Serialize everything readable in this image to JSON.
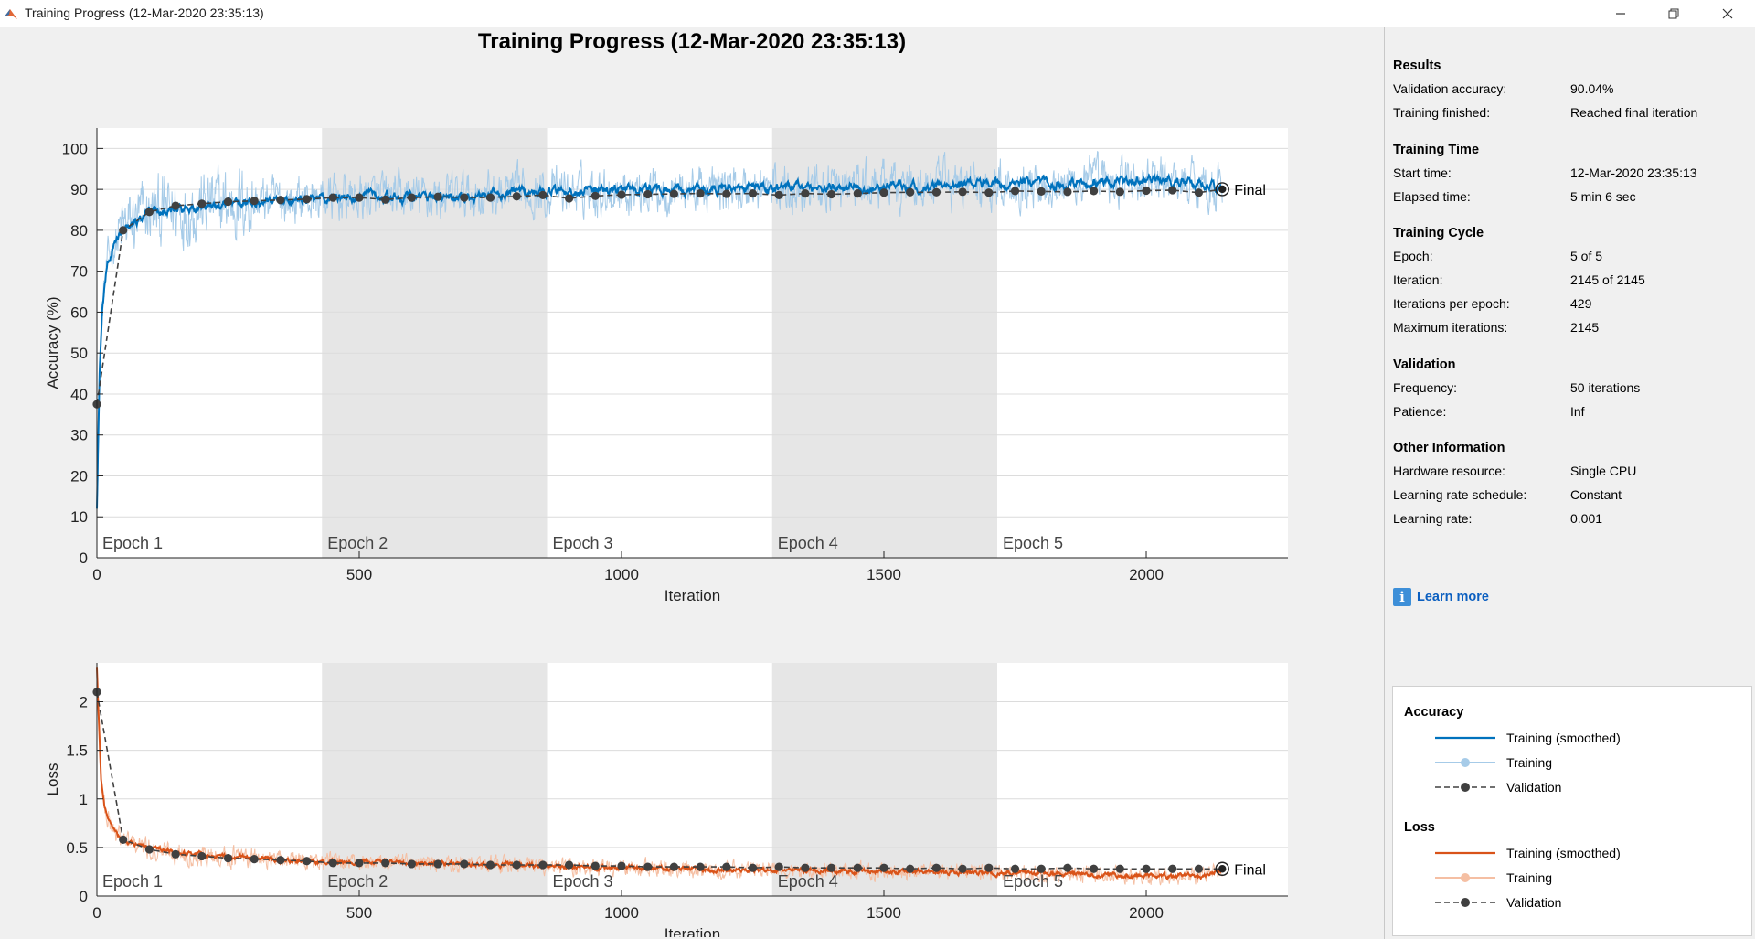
{
  "window": {
    "title": "Training Progress (12-Mar-2020 23:35:13)",
    "controls": {
      "minimize": "minimize-icon",
      "maximize": "restore-icon",
      "close": "close-icon"
    }
  },
  "figure_title": "Training Progress (12-Mar-2020 23:35:13)",
  "results_panel": {
    "sections": [
      {
        "title": "Results",
        "rows": [
          {
            "label": "Validation accuracy:",
            "value": "90.04%"
          },
          {
            "label": "Training finished:",
            "value": "Reached final iteration"
          }
        ]
      },
      {
        "title": "Training Time",
        "rows": [
          {
            "label": "Start time:",
            "value": "12-Mar-2020 23:35:13"
          },
          {
            "label": "Elapsed time:",
            "value": "5 min 6 sec"
          }
        ]
      },
      {
        "title": "Training Cycle",
        "rows": [
          {
            "label": "Epoch:",
            "value": "5 of 5"
          },
          {
            "label": "Iteration:",
            "value": "2145 of 2145"
          },
          {
            "label": "Iterations per epoch:",
            "value": "429"
          },
          {
            "label": "Maximum iterations:",
            "value": "2145"
          }
        ]
      },
      {
        "title": "Validation",
        "rows": [
          {
            "label": "Frequency:",
            "value": "50 iterations"
          },
          {
            "label": "Patience:",
            "value": "Inf"
          }
        ]
      },
      {
        "title": "Other Information",
        "rows": [
          {
            "label": "Hardware resource:",
            "value": "Single CPU"
          },
          {
            "label": "Learning rate schedule:",
            "value": "Constant"
          },
          {
            "label": "Learning rate:",
            "value": "0.001"
          }
        ]
      }
    ],
    "learn_more": {
      "label": "Learn more",
      "icon": "info-icon"
    }
  },
  "legend": {
    "groups": [
      {
        "title": "Accuracy",
        "items": [
          {
            "label": "Training (smoothed)",
            "style": "smoothed",
            "color": "#0072bd"
          },
          {
            "label": "Training",
            "style": "raw",
            "color": "#a6cbe8"
          },
          {
            "label": "Validation",
            "style": "validation",
            "color": "#404040"
          }
        ]
      },
      {
        "title": "Loss",
        "items": [
          {
            "label": "Training (smoothed)",
            "style": "smoothed",
            "color": "#d95319"
          },
          {
            "label": "Training",
            "style": "raw",
            "color": "#f5bfa3"
          },
          {
            "label": "Validation",
            "style": "validation",
            "color": "#404040"
          }
        ]
      }
    ]
  },
  "chart_data": [
    {
      "type": "line",
      "ylabel": "Accuracy (%)",
      "xlabel": "Iteration",
      "xlim": [
        0,
        2270
      ],
      "ylim": [
        0,
        105
      ],
      "xticks": [
        0,
        500,
        1000,
        1500,
        2000
      ],
      "yticks": [
        0,
        10,
        20,
        30,
        40,
        50,
        60,
        70,
        80,
        90,
        100
      ],
      "grid": true,
      "epochs": {
        "labels": [
          "Epoch 1",
          "Epoch 2",
          "Epoch 3",
          "Epoch 4",
          "Epoch 5"
        ],
        "iterations_per_epoch": 429,
        "shaded": [
          2,
          4
        ]
      },
      "final_label": "Final",
      "final_value": 90.04,
      "colors": {
        "smoothed": "#0072bd",
        "raw": "#a6cbe8",
        "validation": "#404040"
      },
      "smoothed_anchors": {
        "x": [
          0,
          5,
          10,
          20,
          30,
          50,
          100,
          200,
          300,
          400,
          500,
          600,
          700,
          800,
          900,
          1000,
          1200,
          1400,
          1600,
          1800,
          2000,
          2100,
          2145
        ],
        "y": [
          12,
          45,
          60,
          72,
          76,
          80,
          84,
          86,
          87,
          87.5,
          88,
          88,
          88.5,
          89,
          89.5,
          90,
          90,
          90.5,
          91,
          91.5,
          92,
          92,
          90
        ]
      },
      "validation": {
        "x": [
          0,
          50,
          100,
          150,
          200,
          250,
          300,
          350,
          400,
          450,
          500,
          550,
          600,
          650,
          700,
          750,
          800,
          850,
          900,
          950,
          1000,
          1050,
          1100,
          1150,
          1200,
          1250,
          1300,
          1350,
          1400,
          1450,
          1500,
          1550,
          1600,
          1650,
          1700,
          1750,
          1800,
          1850,
          1900,
          1950,
          2000,
          2050,
          2100,
          2145
        ],
        "y": [
          37.5,
          80,
          84.5,
          86,
          86.5,
          87,
          87.2,
          87.4,
          87.6,
          88,
          88,
          87.5,
          88,
          88.2,
          88,
          88,
          88.3,
          88.6,
          87.8,
          88.4,
          88.7,
          88.8,
          88.9,
          89,
          88.9,
          89,
          88.6,
          89,
          88.8,
          89,
          89.2,
          89.3,
          89.3,
          89.4,
          89.2,
          89.6,
          89.5,
          89.4,
          89.6,
          89.4,
          89.7,
          89.8,
          89.2,
          90.04
        ]
      }
    },
    {
      "type": "line",
      "ylabel": "Loss",
      "xlabel": "Iteration",
      "xlim": [
        0,
        2270
      ],
      "ylim": [
        0,
        2.4
      ],
      "xticks": [
        0,
        500,
        1000,
        1500,
        2000
      ],
      "yticks": [
        0,
        0.5,
        1,
        1.5,
        2
      ],
      "yticklabels": [
        "0",
        "0.5",
        "1",
        "1.5",
        "2"
      ],
      "grid": true,
      "epochs": {
        "labels": [
          "Epoch 1",
          "Epoch 2",
          "Epoch 3",
          "Epoch 4",
          "Epoch 5"
        ],
        "iterations_per_epoch": 429,
        "shaded": [
          2,
          4
        ]
      },
      "final_label": "Final",
      "colors": {
        "smoothed": "#d95319",
        "raw": "#f5bfa3",
        "validation": "#404040"
      },
      "smoothed_anchors": {
        "x": [
          0,
          3,
          8,
          15,
          25,
          40,
          60,
          100,
          200,
          300,
          400,
          500,
          600,
          700,
          800,
          900,
          1000,
          1200,
          1400,
          1600,
          1800,
          2000,
          2100,
          2145
        ],
        "y": [
          2.35,
          1.9,
          1.2,
          0.9,
          0.75,
          0.62,
          0.55,
          0.48,
          0.42,
          0.39,
          0.36,
          0.35,
          0.34,
          0.33,
          0.32,
          0.3,
          0.29,
          0.27,
          0.26,
          0.25,
          0.23,
          0.21,
          0.2,
          0.26
        ]
      },
      "validation": {
        "x": [
          0,
          50,
          100,
          150,
          200,
          250,
          300,
          350,
          400,
          450,
          500,
          550,
          600,
          650,
          700,
          750,
          800,
          850,
          900,
          950,
          1000,
          1050,
          1100,
          1150,
          1200,
          1250,
          1300,
          1350,
          1400,
          1450,
          1500,
          1550,
          1600,
          1650,
          1700,
          1750,
          1800,
          1850,
          1900,
          1950,
          2000,
          2050,
          2100,
          2145
        ],
        "y": [
          2.1,
          0.58,
          0.48,
          0.43,
          0.41,
          0.39,
          0.38,
          0.37,
          0.36,
          0.34,
          0.34,
          0.34,
          0.33,
          0.33,
          0.33,
          0.32,
          0.32,
          0.32,
          0.32,
          0.31,
          0.31,
          0.3,
          0.3,
          0.3,
          0.3,
          0.29,
          0.3,
          0.29,
          0.29,
          0.29,
          0.29,
          0.28,
          0.29,
          0.28,
          0.29,
          0.28,
          0.28,
          0.29,
          0.28,
          0.28,
          0.28,
          0.28,
          0.28,
          0.28
        ]
      }
    }
  ]
}
